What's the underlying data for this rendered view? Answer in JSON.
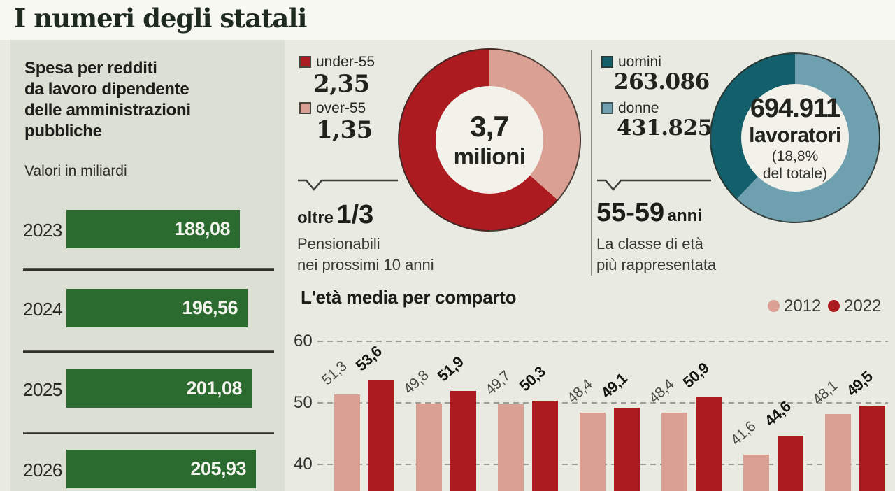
{
  "header": {
    "title": "I numeri degli statali"
  },
  "spending": {
    "heading": "Spesa per redditi\nda lavoro dipendente\ndelle amministrazioni\npubbliche",
    "subtitle": "Valori in miliardi"
  },
  "pension_note": {
    "lead": "oltre",
    "big": "1/3",
    "body": "Pensionabili\nnei prossimi 10 anni"
  },
  "age_class_note": {
    "lead": "55-59",
    "small": "anni",
    "body": "La classe di età\npiù rappresentata"
  },
  "donut1_center": {
    "line1": "3,7",
    "line2": "milioni"
  },
  "donut2_center": {
    "line1": "694.911",
    "line2": "lavoratori",
    "line3": "(18,8%\ndel totale)"
  },
  "chart_data": [
    {
      "id": "spesa-redditi",
      "type": "bar",
      "orientation": "horizontal",
      "title": "Spesa per redditi da lavoro dipendente delle amministrazioni pubbliche",
      "unit": "Valori in miliardi",
      "categories": [
        "2023",
        "2024",
        "2025",
        "2026"
      ],
      "values": [
        188.08,
        196.56,
        201.08,
        205.93
      ],
      "value_labels": [
        "188,08",
        "196,56",
        "201,08",
        "205,93"
      ],
      "bar_color": "#2c6b2f"
    },
    {
      "id": "under-over-55",
      "type": "pie",
      "donut": true,
      "slices": [
        {
          "label": "under-55",
          "value": 2.35,
          "value_label": "2,35",
          "color": "#ab1b20"
        },
        {
          "label": "over-55",
          "value": 1.35,
          "value_label": "1,35",
          "color": "#d9a093"
        }
      ],
      "center_label": "3,7 milioni",
      "annotation": "oltre 1/3 Pensionabili nei prossimi 10 anni"
    },
    {
      "id": "uomini-donne",
      "type": "pie",
      "donut": true,
      "slices": [
        {
          "label": "uomini",
          "value": 263086,
          "value_label": "263.086",
          "color": "#135f6b"
        },
        {
          "label": "donne",
          "value": 431825,
          "value_label": "431.825",
          "color": "#6fa0b0"
        }
      ],
      "center_label": "694.911 lavoratori (18,8% del totale)",
      "annotation": "55-59 anni La classe di età più rappresentata"
    },
    {
      "id": "eta-media-per-comparto",
      "type": "bar",
      "grouped": true,
      "title": "L'età media per comparto",
      "legend_position": "top-right",
      "categories": [
        "",
        "",
        "",
        "",
        "",
        "",
        ""
      ],
      "series": [
        {
          "name": "2012",
          "color": "#d9a093",
          "values": [
            51.3,
            49.8,
            49.7,
            48.4,
            48.4,
            41.6,
            48.1
          ],
          "value_labels": [
            "51,3",
            "49,8",
            "49,7",
            "48,4",
            "48,4",
            "41,6",
            "48,1"
          ]
        },
        {
          "name": "2022",
          "color": "#ab1b20",
          "values": [
            53.6,
            51.9,
            50.3,
            49.1,
            50.9,
            44.6,
            49.5
          ],
          "value_labels": [
            "53,6",
            "51,9",
            "50,3",
            "49,1",
            "50,9",
            "44,6",
            "49,5"
          ]
        }
      ],
      "yticks": [
        60,
        50,
        40
      ],
      "ylim_visible": [
        40,
        60
      ],
      "grid": "dashed-horizontal"
    }
  ]
}
